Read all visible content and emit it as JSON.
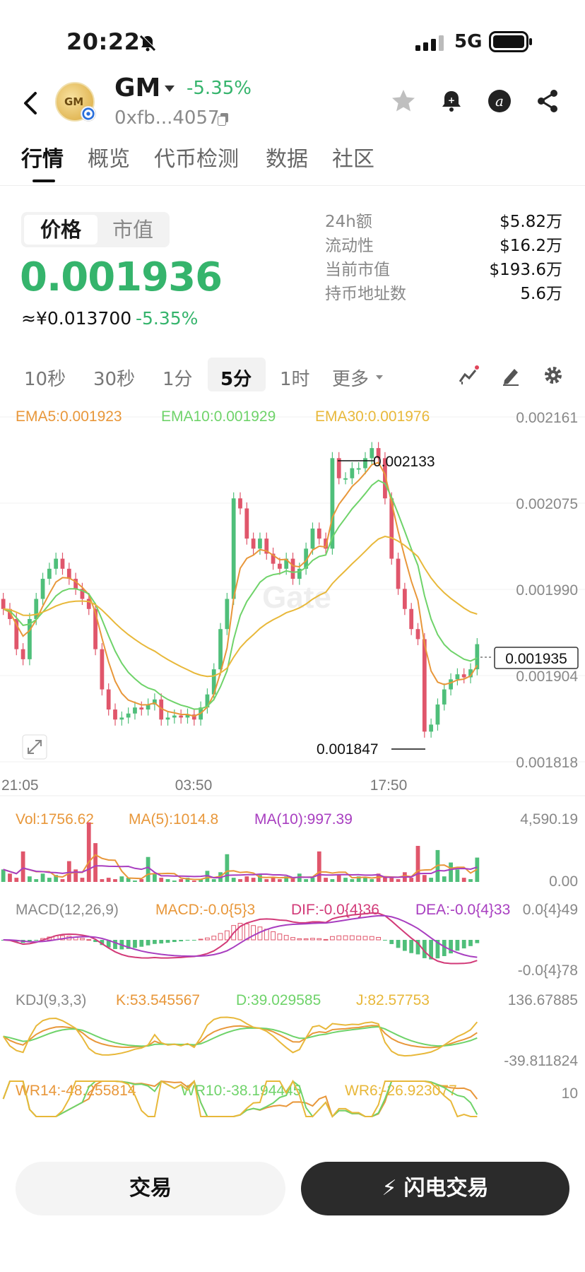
{
  "status_bar": {
    "time": "20:22",
    "network": "5G"
  },
  "header": {
    "symbol": "GM",
    "change": "-5.35%",
    "address": "0xfb...4057",
    "logo_text": "GM"
  },
  "tabs": [
    {
      "label": "行情",
      "active": true
    },
    {
      "label": "概览",
      "active": false
    },
    {
      "label": "代币检测",
      "active": false
    },
    {
      "label": "数据",
      "active": false
    },
    {
      "label": "社区",
      "active": false
    }
  ],
  "price_block": {
    "toggle": {
      "price": "价格",
      "market_cap": "市值"
    },
    "price": "0.001936",
    "cny": "≈¥0.013700",
    "cny_change": "-5.35%"
  },
  "stats": [
    {
      "label": "24h额",
      "value": "$5.82万"
    },
    {
      "label": "流动性",
      "value": "$16.2万"
    },
    {
      "label": "当前市值",
      "value": "$193.6万"
    },
    {
      "label": "持币地址数",
      "value": "5.6万"
    }
  ],
  "timeframes": [
    {
      "label": "10秒",
      "active": false
    },
    {
      "label": "30秒",
      "active": false
    },
    {
      "label": "1分",
      "active": false
    },
    {
      "label": "5分",
      "active": true
    },
    {
      "label": "1时",
      "active": false
    },
    {
      "label": "更多",
      "active": false
    }
  ],
  "chart": {
    "ema_legend": [
      {
        "text": "EMA5:0.001923",
        "color": "#e8973a"
      },
      {
        "text": "EMA10:0.001929",
        "color": "#6fd36a"
      },
      {
        "text": "EMA30:0.001976",
        "color": "#e8b83a"
      }
    ],
    "price_ticks": [
      "0.002161",
      "0.002075",
      "0.001990",
      "0.001904",
      "0.001818"
    ],
    "current_price_tag": "0.001935",
    "high_label": "0.002133",
    "low_label": "0.001847",
    "time_labels": [
      "21:05",
      "03:50",
      "17:50"
    ],
    "watermark": "Gate",
    "vol_legend": [
      {
        "text": "Vol:1756.62",
        "color": "#e8973a"
      },
      {
        "text": "MA(5):1014.8",
        "color": "#e8973a"
      },
      {
        "text": "MA(10):997.39",
        "color": "#a83ec0"
      }
    ],
    "vol_ticks": [
      "4,590.19",
      "0.00"
    ],
    "macd_legend": [
      {
        "text": "MACD(12,26,9)",
        "color": "#888888"
      },
      {
        "text": "MACD:-0.0{5}3",
        "color": "#e8973a"
      },
      {
        "text": "DIF:-0.0{4}36",
        "color": "#d23a78"
      },
      {
        "text": "DEA:-0.0{4}33",
        "color": "#a83ec0"
      }
    ],
    "macd_ticks": [
      "0.0{4}49",
      "-0.0{4}78"
    ],
    "kdj_legend": [
      {
        "text": "KDJ(9,3,3)",
        "color": "#888888"
      },
      {
        "text": "K:53.545567",
        "color": "#e8973a"
      },
      {
        "text": "D:39.029585",
        "color": "#6fd36a"
      },
      {
        "text": "J:82.57753",
        "color": "#e8b83a"
      }
    ],
    "kdj_ticks": [
      "136.67885",
      "-39.811824"
    ],
    "wr_legend": [
      {
        "text": "WR14:-48.255814",
        "color": "#e8973a"
      },
      {
        "text": "WR10:-38.194445",
        "color": "#6fd36a"
      },
      {
        "text": "WR6:-26.923077",
        "color": "#e8b83a"
      }
    ],
    "wr_ticks": [
      "10"
    ],
    "colors": {
      "up": "#4fbf7a",
      "down": "#e0566b"
    }
  },
  "chart_data": {
    "type": "candlestick",
    "ylim": [
      0.001818,
      0.002161
    ],
    "price_ticks": [
      0.002161,
      0.002075,
      0.00199,
      0.001904,
      0.001818
    ],
    "x_labels": [
      "21:05",
      "03:50",
      "17:50"
    ],
    "close": [
      0.00197,
      0.00196,
      0.00193,
      0.00192,
      0.00196,
      0.00198,
      0.002,
      0.00201,
      0.00202,
      0.00201,
      0.002,
      0.00199,
      0.00198,
      0.00197,
      0.00193,
      0.00189,
      0.00187,
      0.00186,
      0.001862,
      0.001866,
      0.001872,
      0.00187,
      0.001875,
      0.00188,
      0.00186,
      0.001862,
      0.001864,
      0.001862,
      0.001865,
      0.00186,
      0.001872,
      0.001885,
      0.00191,
      0.00195,
      0.00198,
      0.00208,
      0.00207,
      0.00204,
      0.00203,
      0.00204,
      0.002025,
      0.002015,
      0.00201,
      0.00202,
      0.002,
      0.00201,
      0.00203,
      0.00205,
      0.00204,
      0.00203,
      0.00212,
      0.0021,
      0.0021,
      0.00211,
      0.00211,
      0.00212,
      0.00213,
      0.00212,
      0.00208,
      0.00202,
      0.00199,
      0.00197,
      0.00195,
      0.00194,
      0.001848,
      0.001855,
      0.001875,
      0.00189,
      0.0019,
      0.001905,
      0.001902,
      0.00191,
      0.001935
    ],
    "ema5_last": 0.001923,
    "ema10_last": 0.001929,
    "ema30_last": 0.001976,
    "high": 0.002133,
    "low": 0.001847,
    "current": 0.001935,
    "volume_max": 4590.19,
    "volume": [
      900,
      600,
      300,
      2200,
      400,
      200,
      600,
      300,
      500,
      200,
      1500,
      900,
      300,
      4300,
      2800,
      200,
      300,
      200,
      400,
      300,
      100,
      200,
      1800,
      600,
      300,
      200,
      100,
      200,
      300,
      100,
      200,
      800,
      200,
      700,
      2000,
      300,
      200,
      400,
      300,
      500,
      200,
      300,
      200,
      400,
      300,
      600,
      200,
      300,
      2200,
      300,
      200,
      500,
      300,
      200,
      400,
      300,
      200,
      600,
      400,
      300,
      200,
      700,
      300,
      2600,
      500,
      300,
      2300,
      400,
      1400,
      900,
      300,
      200,
      1756.62
    ],
    "kdj": {
      "K": 53.545567,
      "D": 39.029585,
      "J": 82.57753
    },
    "wr": {
      "WR14": -48.255814,
      "WR10": -38.194445,
      "WR6": -26.923077
    }
  },
  "buttons": {
    "trade": "交易",
    "flash_trade": "闪电交易"
  }
}
